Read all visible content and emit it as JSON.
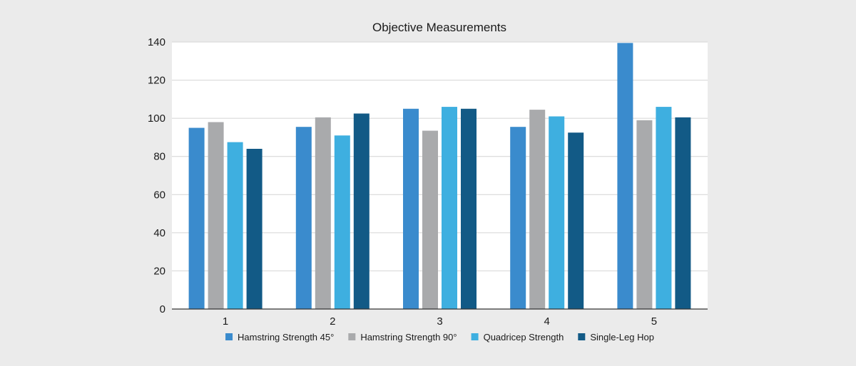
{
  "chart_data": {
    "type": "bar",
    "title": "Objective Measurements",
    "xlabel": "",
    "ylabel": "",
    "categories": [
      "1",
      "2",
      "3",
      "4",
      "5"
    ],
    "ylim": [
      0,
      140
    ],
    "yticks": [
      0,
      20,
      40,
      60,
      80,
      100,
      120,
      140
    ],
    "grid": true,
    "legend_position": "bottom",
    "series": [
      {
        "name": "Hamstring Strength 45°",
        "color": "#3a8bcd",
        "values": [
          95,
          95.5,
          105,
          95.5,
          139.5
        ]
      },
      {
        "name": "Hamstring Strength 90°",
        "color": "#a9aaac",
        "values": [
          98,
          100.5,
          93.5,
          104.5,
          99
        ]
      },
      {
        "name": "Quadricep Strength",
        "color": "#3eafe0",
        "values": [
          87.5,
          91,
          106,
          101,
          106
        ]
      },
      {
        "name": "Single-Leg Hop",
        "color": "#125a86",
        "values": [
          84,
          102.5,
          105,
          92.5,
          100.5
        ]
      }
    ]
  }
}
